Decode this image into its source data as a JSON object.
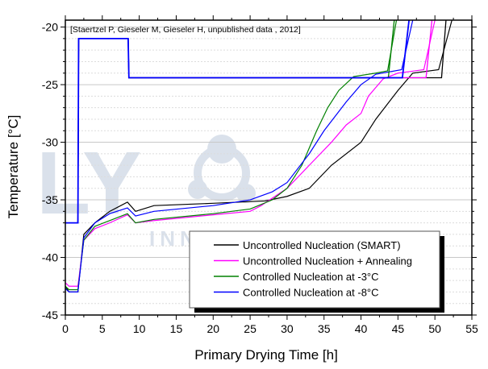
{
  "chart_data": {
    "type": "line",
    "title": "",
    "annotation": "[Staertzel P, Gieseler M, Gieseler H, unpublished data , 2012]",
    "xlabel": "Primary Drying Time [h]",
    "ylabel": "Temperature [°C]",
    "xlim": [
      0,
      55
    ],
    "ylim": [
      -45,
      -19.4
    ],
    "xticks": [
      0,
      5,
      10,
      15,
      20,
      25,
      30,
      35,
      40,
      45,
      50,
      55
    ],
    "yticks": [
      -45,
      -40,
      -35,
      -30,
      -25,
      -20
    ],
    "grid": true,
    "legend_placement": "bottom-right",
    "watermark": "LYO 莱奥德创 INNOVATION",
    "series": [
      {
        "name": "Uncontrolled Nucleation (SMART)",
        "color": "#000000",
        "x": [
          0,
          0.5,
          1.7,
          2.5,
          4,
          6,
          8.4,
          9.5,
          12,
          20,
          27,
          30,
          33,
          36,
          40,
          42,
          45,
          47,
          50.5,
          52.3
        ],
        "y": [
          -42.5,
          -43,
          -43,
          -38,
          -37,
          -36,
          -35.2,
          -36,
          -35.5,
          -35.3,
          -35.1,
          -34.7,
          -34,
          -32,
          -30,
          -28,
          -25.5,
          -24,
          -23.7,
          -19.4
        ],
        "shelf_end": 50.9,
        "shelf_top": 51.5
      },
      {
        "name": "Uncontrolled Nucleation + Annealing",
        "color": "#ff00ff",
        "x": [
          0,
          0.5,
          1.7,
          2.5,
          4,
          6,
          8.4,
          9.5,
          12,
          20,
          25,
          26.5,
          30,
          33,
          36,
          38,
          40,
          41,
          43,
          45,
          48.5,
          50
        ],
        "y": [
          -42.2,
          -42.5,
          -42.5,
          -38.5,
          -37.5,
          -37,
          -36.3,
          -37,
          -36.8,
          -36.3,
          -36,
          -35.5,
          -34,
          -32,
          -30,
          -28.5,
          -27.5,
          -26,
          -24.5,
          -24,
          -23.7,
          -19.4
        ],
        "shelf_end": 48.8,
        "shelf_top": 49.6
      },
      {
        "name": "Controlled Nucleation at -3°C",
        "color": "#008000",
        "x": [
          0,
          0.5,
          1.7,
          2.5,
          4,
          6,
          8.4,
          9.5,
          12,
          20,
          25,
          28,
          30,
          32,
          34,
          35.5,
          37,
          39,
          42,
          43.6,
          44.8
        ],
        "y": [
          -42.5,
          -42.8,
          -42.8,
          -38.5,
          -37.3,
          -36.8,
          -36.2,
          -37,
          -36.7,
          -36.2,
          -35.8,
          -35,
          -34,
          -32,
          -29,
          -27,
          -25.5,
          -24.3,
          -24,
          -23.8,
          -19.4
        ],
        "shelf_end": 43.7,
        "shelf_top": 44.5
      },
      {
        "name": "Controlled Nucleation at -8°C",
        "color": "#0000ff",
        "x": [
          0,
          0.5,
          1.7,
          2.5,
          4,
          6,
          8.4,
          9.5,
          12,
          20,
          25,
          28,
          30,
          33,
          35,
          38,
          40,
          42,
          45.5,
          47
        ],
        "y": [
          -42.7,
          -43,
          -43,
          -38.3,
          -37,
          -36.2,
          -35.7,
          -36.4,
          -36,
          -35.5,
          -35,
          -34.3,
          -33.5,
          -31,
          -29,
          -26.5,
          -25,
          -24.1,
          -23.7,
          -19.4
        ],
        "shelf_end": 45.6,
        "shelf_top": 46.5
      }
    ],
    "shelf_temperature": {
      "x": [
        0,
        1.7,
        1.8,
        8.5,
        8.6
      ],
      "y": [
        -37,
        -37,
        -21,
        -21,
        -24.4
      ]
    }
  }
}
